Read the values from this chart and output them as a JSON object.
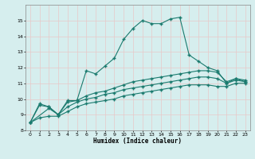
{
  "xlabel": "Humidex (Indice chaleur)",
  "xlim": [
    -0.5,
    23.5
  ],
  "ylim": [
    8,
    16
  ],
  "yticks": [
    8,
    9,
    10,
    11,
    12,
    13,
    14,
    15
  ],
  "xticks": [
    0,
    1,
    2,
    3,
    4,
    5,
    6,
    7,
    8,
    9,
    10,
    11,
    12,
    13,
    14,
    15,
    16,
    17,
    18,
    19,
    20,
    21,
    22,
    23
  ],
  "bg_color": "#d6eeee",
  "grid_color": "#b8d8d8",
  "line_color": "#1a7a6e",
  "curve1_x": [
    0,
    1,
    2,
    3,
    4,
    5,
    6,
    7,
    8,
    9,
    10,
    11,
    12,
    13,
    14,
    15,
    16,
    17,
    18,
    19,
    20,
    21,
    22,
    23
  ],
  "curve1_y": [
    8.5,
    9.7,
    9.5,
    9.0,
    9.9,
    9.9,
    11.8,
    11.6,
    12.1,
    12.6,
    13.8,
    14.5,
    15.0,
    14.8,
    14.8,
    15.1,
    15.2,
    12.8,
    12.4,
    12.0,
    11.8,
    11.0,
    11.3,
    11.1
  ],
  "curve2_x": [
    0,
    1,
    2,
    3,
    4,
    5,
    6,
    7,
    8,
    9,
    10,
    11,
    12,
    13,
    14,
    15,
    16,
    17,
    18,
    19,
    20,
    21,
    22,
    23
  ],
  "curve2_y": [
    8.5,
    9.6,
    9.5,
    9.0,
    9.8,
    9.9,
    10.2,
    10.4,
    10.5,
    10.7,
    10.9,
    11.1,
    11.2,
    11.3,
    11.4,
    11.5,
    11.6,
    11.7,
    11.8,
    11.8,
    11.7,
    11.1,
    11.3,
    11.2
  ],
  "curve3_x": [
    0,
    2,
    3,
    4,
    5,
    6,
    7,
    8,
    9,
    10,
    11,
    12,
    13,
    14,
    15,
    16,
    17,
    18,
    19,
    20,
    21,
    22,
    23
  ],
  "curve3_y": [
    8.5,
    9.4,
    9.0,
    9.5,
    9.8,
    10.0,
    10.1,
    10.3,
    10.4,
    10.6,
    10.7,
    10.8,
    10.9,
    11.0,
    11.1,
    11.2,
    11.3,
    11.4,
    11.4,
    11.3,
    11.0,
    11.2,
    11.1
  ],
  "curve4_x": [
    0,
    1,
    2,
    3,
    4,
    5,
    6,
    7,
    8,
    9,
    10,
    11,
    12,
    13,
    14,
    15,
    16,
    17,
    18,
    19,
    20,
    21,
    22,
    23
  ],
  "curve4_y": [
    8.5,
    8.8,
    8.9,
    8.9,
    9.2,
    9.5,
    9.7,
    9.8,
    9.9,
    10.0,
    10.2,
    10.3,
    10.4,
    10.5,
    10.6,
    10.7,
    10.8,
    10.9,
    10.9,
    10.9,
    10.8,
    10.8,
    11.0,
    11.0
  ]
}
